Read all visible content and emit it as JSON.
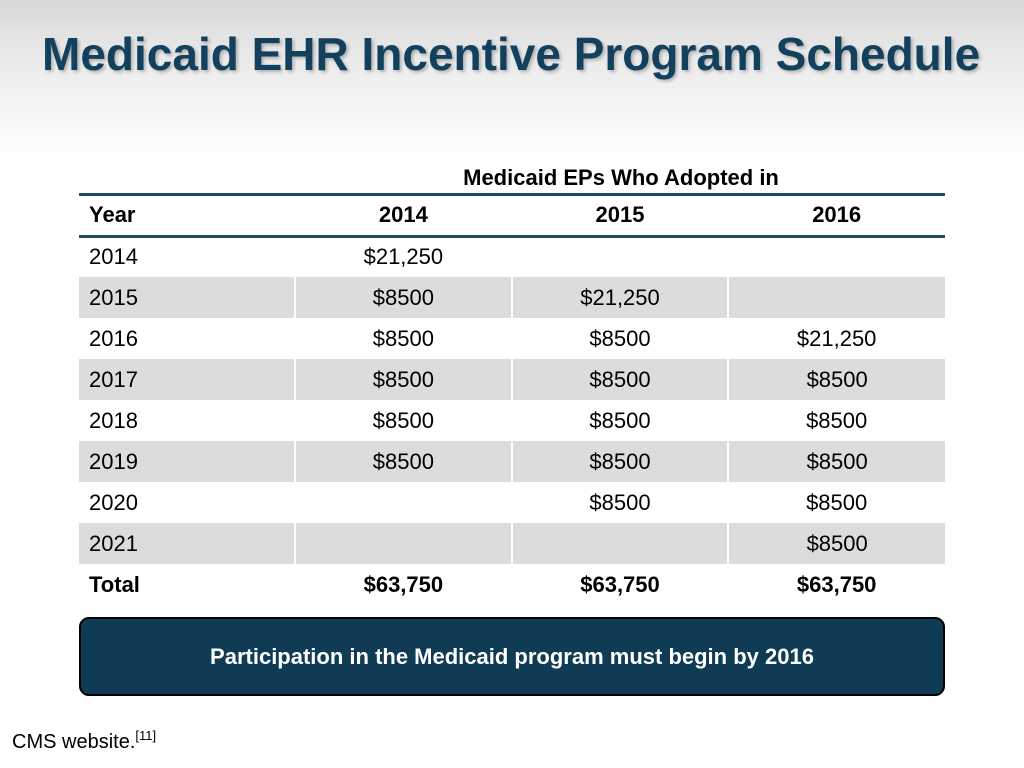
{
  "slide": {
    "title": "Medicaid EHR Incentive Program Schedule",
    "group_header": "Medicaid EPs Who Adopted in",
    "columns": [
      "Year",
      "2014",
      "2015",
      "2016"
    ],
    "rows": [
      [
        "2014",
        "$21,250",
        "",
        ""
      ],
      [
        "2015",
        "$8500",
        "$21,250",
        ""
      ],
      [
        "2016",
        "$8500",
        "$8500",
        "$21,250"
      ],
      [
        "2017",
        "$8500",
        "$8500",
        "$8500"
      ],
      [
        "2018",
        "$8500",
        "$8500",
        "$8500"
      ],
      [
        "2019",
        "$8500",
        "$8500",
        "$8500"
      ],
      [
        "2020",
        "",
        "$8500",
        "$8500"
      ],
      [
        "2021",
        "",
        "",
        "$8500"
      ]
    ],
    "total": [
      "Total",
      "$63,750",
      "$63,750",
      "$63,750"
    ],
    "banner": "Participation in the Medicaid program must begin by 2016",
    "source_text": "CMS website.",
    "source_ref": "[11]"
  },
  "colors": {
    "title": "#13405c",
    "banner_bg": "#0f3b55",
    "rule": "#1c4a63",
    "alt_row": "#dcdcdc"
  }
}
